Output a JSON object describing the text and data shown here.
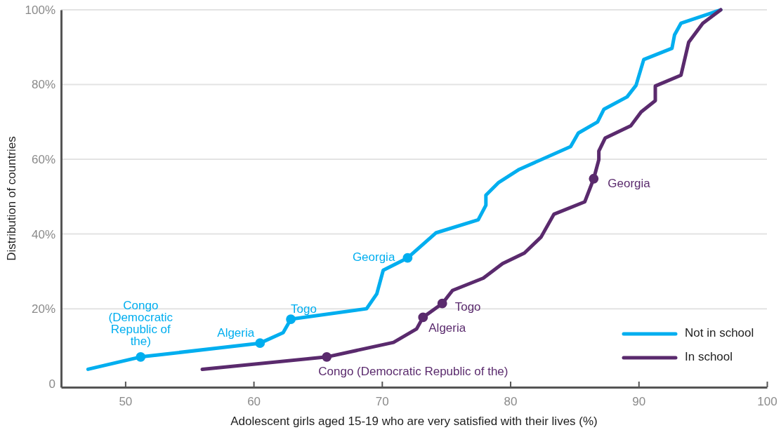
{
  "chart_data": {
    "type": "line",
    "xlabel": "Adolescent girls aged 15-19 who are very satisfied with their lives (%)",
    "ylabel": "Distribution of countries",
    "xlim": [
      45,
      100
    ],
    "xticks": [
      50,
      60,
      70,
      80,
      90,
      100
    ],
    "ylim": [
      -1,
      100
    ],
    "yticks": [
      0,
      {
        "value": 20,
        "label": "20%"
      },
      {
        "value": 40,
        "label": "40%"
      },
      {
        "value": 60,
        "label": "60%"
      },
      {
        "value": 80,
        "label": "80%"
      },
      {
        "value": 100,
        "label": "100%"
      }
    ],
    "grid": "y",
    "legend": "bottom right",
    "line_style": "solid",
    "marker": "none",
    "series": [
      {
        "name": "Not in school",
        "color": "#00aeef",
        "x": [
          47.1,
          51.2,
          60.5,
          62.3,
          62.9,
          68.8,
          69.6,
          70.1,
          72.0,
          74.2,
          77.5,
          78.1,
          78.1,
          79.1,
          80.7,
          84.7,
          85.3,
          86.8,
          87.3,
          89.1,
          89.8,
          90.4,
          92.6,
          92.8,
          93.3,
          96.4
        ],
        "values": [
          3.8,
          7.1,
          10.8,
          13.6,
          17.2,
          20.0,
          24.0,
          30.3,
          33.6,
          40.3,
          43.8,
          47.7,
          50.4,
          53.8,
          57.3,
          63.4,
          67.0,
          70.0,
          73.4,
          76.7,
          79.8,
          86.7,
          89.7,
          93.3,
          96.4,
          100
        ]
      },
      {
        "name": "In school",
        "color": "#5a2a6d",
        "x": [
          56.0,
          65.7,
          70.9,
          72.7,
          73.2,
          74.7,
          75.5,
          77.9,
          79.4,
          81.1,
          82.4,
          83.4,
          85.8,
          86.5,
          86.9,
          86.9,
          87.4,
          89.4,
          90.2,
          91.3,
          91.3,
          93.3,
          93.9,
          95.0,
          96.4
        ],
        "values": [
          3.8,
          7.1,
          11.0,
          14.6,
          17.7,
          21.4,
          24.9,
          28.2,
          32.1,
          34.9,
          39.2,
          45.3,
          48.6,
          54.8,
          59.9,
          62.2,
          65.7,
          69.0,
          72.7,
          75.7,
          79.6,
          82.5,
          91.3,
          96.4,
          100
        ]
      },
      {
        "type": "scatter",
        "marker": "circle",
        "color": "#00aeef",
        "x": [
          51.2,
          60.5,
          62.9,
          72.0
        ],
        "values": [
          7.1,
          10.8,
          17.2,
          33.6
        ]
      },
      {
        "type": "scatter",
        "marker": "circle",
        "color": "#5a2a6d",
        "x": [
          65.7,
          73.2,
          74.7,
          86.5
        ],
        "values": [
          7.1,
          17.7,
          21.4,
          54.8
        ]
      }
    ],
    "annotations": [
      {
        "text": "Congo (Democratic Republic of the)",
        "x": 51.2,
        "y": 7.1
      },
      {
        "text": "Algeria",
        "x": 60.5,
        "y": 10.8
      },
      {
        "text": "Togo",
        "x": 62.9,
        "y": 17.2
      },
      {
        "text": "Georgia",
        "x": 72.0,
        "y": 33.6
      },
      {
        "text": "Congo (Democratic Republic of the)",
        "x": 65.7,
        "y": 7.1
      },
      {
        "text": "Algeria",
        "x": 73.2,
        "y": 17.7
      },
      {
        "text": "Togo",
        "x": 74.7,
        "y": 21.4
      },
      {
        "text": "Georgia",
        "x": 86.5,
        "y": 54.8
      }
    ]
  }
}
